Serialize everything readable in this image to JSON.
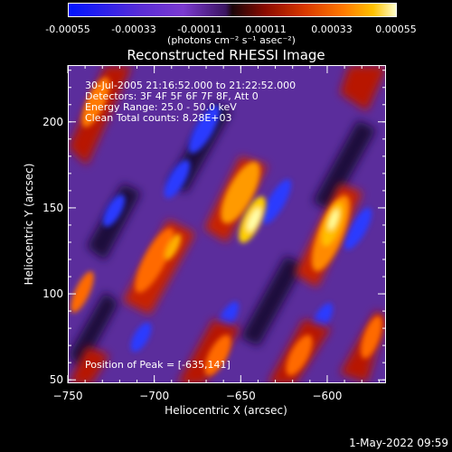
{
  "colorbar": {
    "ticks": [
      "-0.00055",
      "-0.00033",
      "-0.00011",
      "0.00011",
      "0.00033",
      "0.00055"
    ],
    "unit": "(photons cm⁻² s⁻¹ asec⁻²)"
  },
  "title": "Reconstructed RHESSI Image",
  "info": {
    "line1": "30-Jul-2005 21:16:52.000 to 21:22:52.000",
    "line2": "Detectors: 3F 4F 5F 6F 7F 8F, Att 0",
    "line3": "Energy Range: 25.0 - 50.0 keV",
    "line4": "Clean     Total counts: 8.28E+03",
    "peak": "Position of Peak = [-635,141]"
  },
  "chart_data": {
    "type": "heatmap",
    "title": "Reconstructed RHESSI Image",
    "xlabel": "Heliocentric X (arcsec)",
    "ylabel": "Heliocentric Y (arcsec)",
    "xlim": [
      -750,
      -566
    ],
    "ylim": [
      48,
      233
    ],
    "x_ticks": [
      -750,
      -700,
      -650,
      -600
    ],
    "y_ticks": [
      50,
      100,
      150,
      200
    ],
    "color_range": [
      -0.00055,
      0.00055
    ],
    "peak": [
      -635,
      141
    ],
    "x_tick_labels": [
      "−750",
      "−700",
      "−650",
      "−600"
    ],
    "y_tick_labels": [
      "50",
      "100",
      "150",
      "200"
    ]
  },
  "footer": {
    "timestamp": "1-May-2022 09:59"
  }
}
